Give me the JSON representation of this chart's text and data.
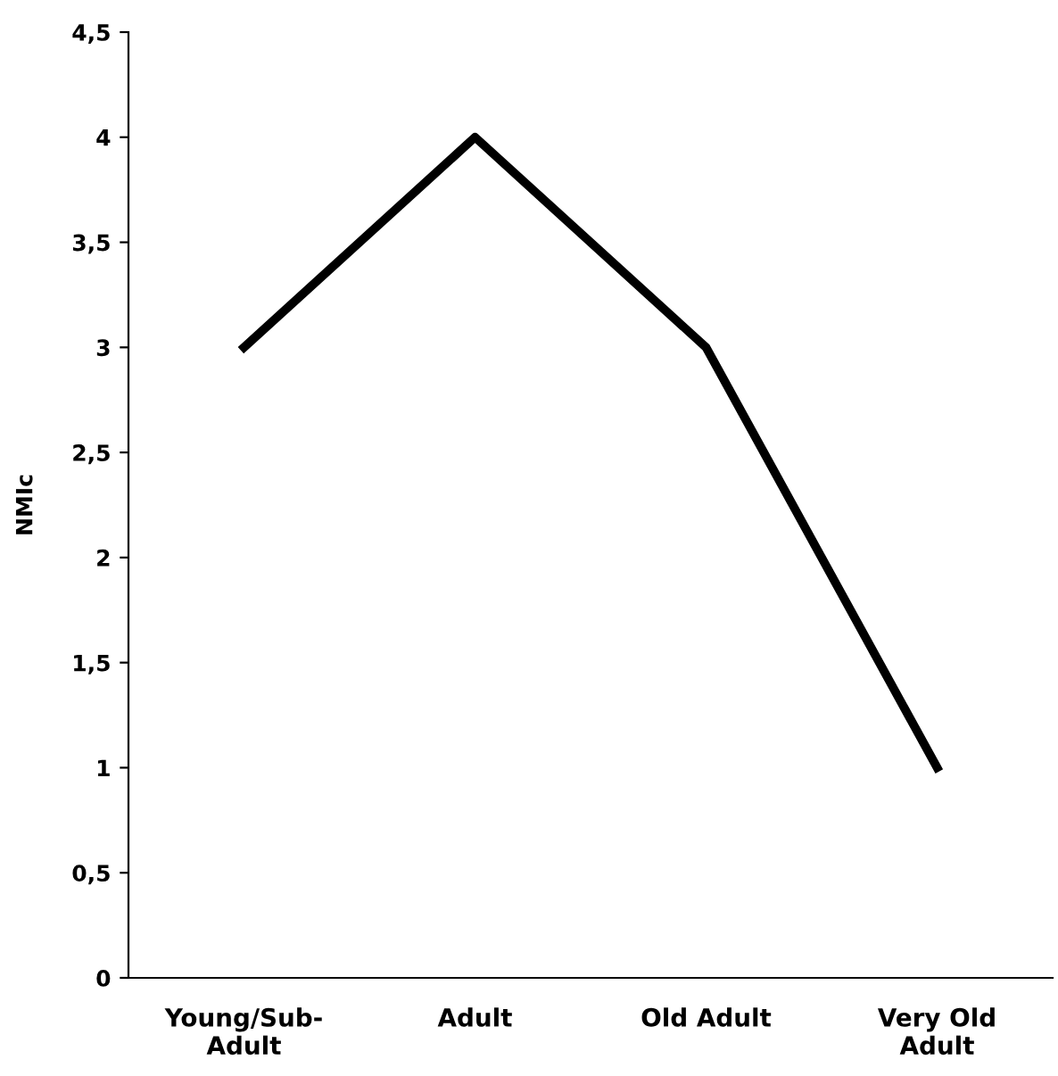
{
  "chart_data": {
    "type": "line",
    "ylabel": "NMIc",
    "categories": [
      "Young/Sub-\nAdult",
      "Adult",
      "Old Adult",
      "Very Old\nAdult"
    ],
    "series": [
      {
        "color": "#000000",
        "values": [
          3,
          4,
          3,
          1
        ]
      }
    ],
    "ylim": [
      0,
      4.5
    ],
    "yticks": [
      0,
      {
        "value": 0.5,
        "label": "0,5"
      },
      1,
      {
        "value": 1.5,
        "label": "1,5"
      },
      2,
      {
        "value": 2.5,
        "label": "2,5"
      },
      3,
      {
        "value": 3.5,
        "label": "3,5"
      },
      4,
      {
        "value": 4.5,
        "label": "4,5"
      }
    ],
    "grid": false,
    "legend": false,
    "marker": "none",
    "line_style": "solid"
  }
}
